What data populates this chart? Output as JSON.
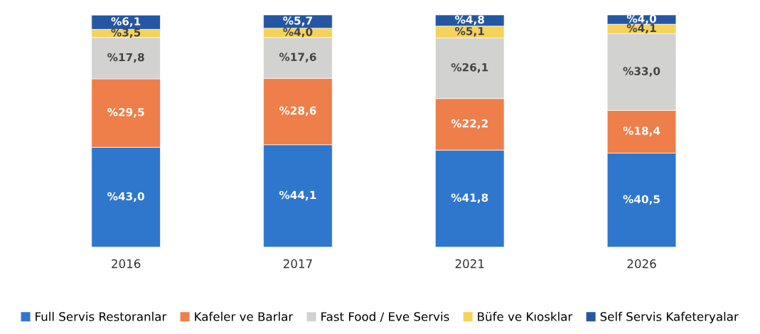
{
  "chart_data": {
    "type": "bar",
    "stacked": true,
    "categories": [
      "2016",
      "2017",
      "2021",
      "2026"
    ],
    "legend": "bottom",
    "grid": false,
    "series": [
      {
        "name": "Full Servis Restoranlar",
        "color": "#2f77cc",
        "values": [
          43.0,
          44.1,
          41.8,
          40.5
        ],
        "value_labels": [
          "%43,0",
          "%44,1",
          "%41,8",
          "%40,5"
        ]
      },
      {
        "name": "Kafeler ve Barlar",
        "color": "#ee7f4a",
        "values": [
          29.5,
          28.6,
          22.2,
          18.4
        ],
        "value_labels": [
          "%29,5",
          "%28,6",
          "%22,2",
          "%18,4"
        ]
      },
      {
        "name": "Fast Food / Eve Servis",
        "color": "#d2d2d0",
        "values": [
          17.8,
          17.6,
          26.1,
          33.0
        ],
        "value_labels": [
          "%17,8",
          "%17,6",
          "%26,1",
          "%33,0"
        ]
      },
      {
        "name": "Büfe ve Kıosklar",
        "color": "#f5d25a",
        "values": [
          3.5,
          4.0,
          5.1,
          4.1
        ],
        "value_labels": [
          "%3,5",
          "%4,0",
          "%5,1",
          "%4,1"
        ]
      },
      {
        "name": "Self Servis Kafeteryalar",
        "color": "#2457a3",
        "values": [
          6.1,
          5.7,
          4.8,
          4.0
        ],
        "value_labels": [
          "%6,1",
          "%5,7",
          "%4,8",
          "%4,0"
        ]
      }
    ]
  }
}
